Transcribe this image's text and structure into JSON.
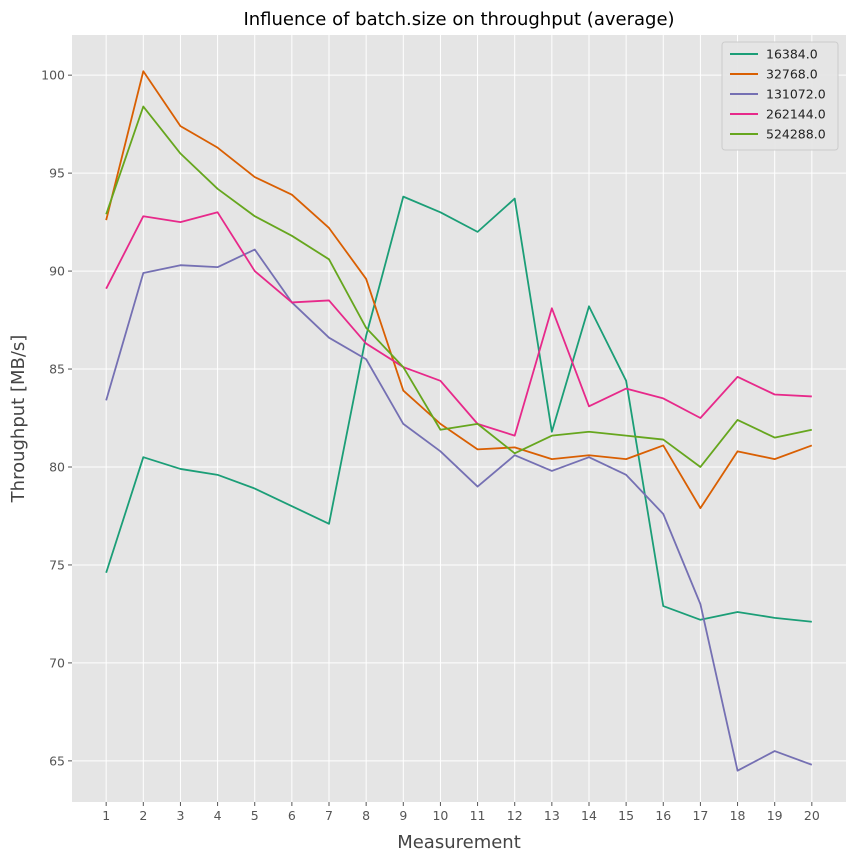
{
  "chart_data": {
    "type": "line",
    "title": "Influence of batch.size on throughput (average)",
    "xlabel": "Measurement",
    "ylabel": "Throughput [MB/s]",
    "x": [
      1,
      2,
      3,
      4,
      5,
      6,
      7,
      8,
      9,
      10,
      11,
      12,
      13,
      14,
      15,
      16,
      17,
      18,
      19,
      20
    ],
    "xlim": [
      0.08,
      20.92
    ],
    "ylim": [
      62.9,
      102.05
    ],
    "yticks": [
      65,
      70,
      75,
      80,
      85,
      90,
      95,
      100
    ],
    "grid": true,
    "legend_position": "top-right",
    "series": [
      {
        "name": "16384.0",
        "color": "#1b9e77",
        "values": [
          74.6,
          80.5,
          79.9,
          79.6,
          78.9,
          78.0,
          77.1,
          86.7,
          93.8,
          93.0,
          92.0,
          93.7,
          81.8,
          88.2,
          84.4,
          72.9,
          72.2,
          72.6,
          72.3,
          72.1
        ]
      },
      {
        "name": "32768.0",
        "color": "#d95f02",
        "values": [
          92.6,
          100.2,
          97.4,
          96.3,
          94.8,
          93.9,
          92.2,
          89.6,
          83.9,
          82.2,
          80.9,
          81.0,
          80.4,
          80.6,
          80.4,
          81.1,
          77.9,
          80.8,
          80.4,
          81.1
        ]
      },
      {
        "name": "131072.0",
        "color": "#7570b3",
        "values": [
          83.4,
          89.9,
          90.3,
          90.2,
          91.1,
          88.4,
          86.6,
          85.5,
          82.2,
          80.8,
          79.0,
          80.6,
          79.8,
          80.5,
          79.6,
          77.6,
          73.0,
          64.5,
          65.5,
          64.8
        ]
      },
      {
        "name": "262144.0",
        "color": "#e7298a",
        "values": [
          89.1,
          92.8,
          92.5,
          93.0,
          90.0,
          88.4,
          88.5,
          86.3,
          85.1,
          84.4,
          82.2,
          81.6,
          88.1,
          83.1,
          84.0,
          83.5,
          82.5,
          84.6,
          83.7,
          83.6
        ]
      },
      {
        "name": "524288.0",
        "color": "#66a61e",
        "values": [
          92.9,
          98.4,
          96.0,
          94.2,
          92.8,
          91.8,
          90.6,
          87.1,
          85.1,
          81.9,
          82.2,
          80.7,
          81.6,
          81.8,
          81.6,
          81.4,
          80.0,
          82.4,
          81.5,
          81.9
        ]
      }
    ]
  }
}
